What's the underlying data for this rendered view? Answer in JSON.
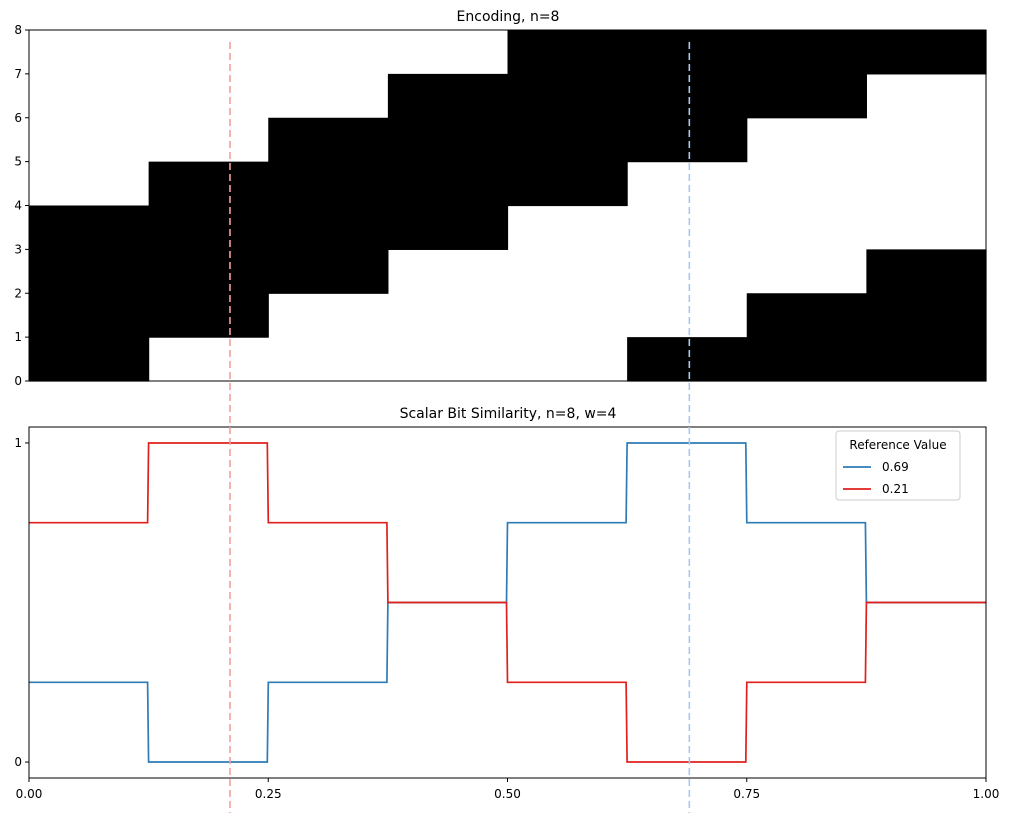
{
  "chart_data": [
    {
      "type": "heatmap",
      "title": "Encoding, n=8",
      "xlim": [
        0,
        1
      ],
      "ylim": [
        0,
        8
      ],
      "y_ticks": [
        "0",
        "1",
        "2",
        "3",
        "4",
        "5",
        "6",
        "7",
        "8"
      ],
      "x_tick_labels_shown": false,
      "bins": 8,
      "active_bits_per_bin": [
        [
          0,
          1,
          2,
          3
        ],
        [
          1,
          2,
          3,
          4
        ],
        [
          2,
          3,
          4,
          5
        ],
        [
          3,
          4,
          5,
          6
        ],
        [
          4,
          5,
          6,
          7
        ],
        [
          5,
          6,
          7,
          0
        ],
        [
          6,
          7,
          0,
          1
        ],
        [
          7,
          0,
          1,
          2
        ]
      ],
      "on_color": "#000000",
      "off_color": "#ffffff",
      "reference_lines": [
        {
          "x": 0.21,
          "color": "#f4a099"
        },
        {
          "x": 0.69,
          "color": "#a9c8ef"
        }
      ]
    },
    {
      "type": "line",
      "title": "Scalar Bit Similarity, n=8, w=4",
      "xlim": [
        0,
        1
      ],
      "ylim": [
        -0.05,
        1.05
      ],
      "x_ticks": [
        "0.00",
        "0.25",
        "0.50",
        "0.75",
        "1.00"
      ],
      "y_ticks": [
        "0",
        "1"
      ],
      "legend": {
        "title": "Reference Value",
        "position": "top-right"
      },
      "series": [
        {
          "name": "0.69",
          "color": "#2f7bb5",
          "x": [
            0,
            0.125,
            0.25,
            0.375,
            0.5,
            0.625,
            0.75,
            0.875,
            1.0
          ],
          "y": [
            0.25,
            0,
            0.25,
            0.5,
            0.75,
            1,
            0.75,
            0.5,
            0.5
          ]
        },
        {
          "name": "0.21",
          "color": "#e0201c",
          "x": [
            0,
            0.125,
            0.25,
            0.375,
            0.5,
            0.625,
            0.75,
            0.875,
            1.0
          ],
          "y": [
            0.75,
            1,
            0.75,
            0.5,
            0.25,
            0,
            0.25,
            0.5,
            0.5
          ]
        }
      ],
      "reference_lines": [
        {
          "x": 0.21,
          "color": "#f4a099"
        },
        {
          "x": 0.69,
          "color": "#a9c8ef"
        }
      ]
    }
  ]
}
